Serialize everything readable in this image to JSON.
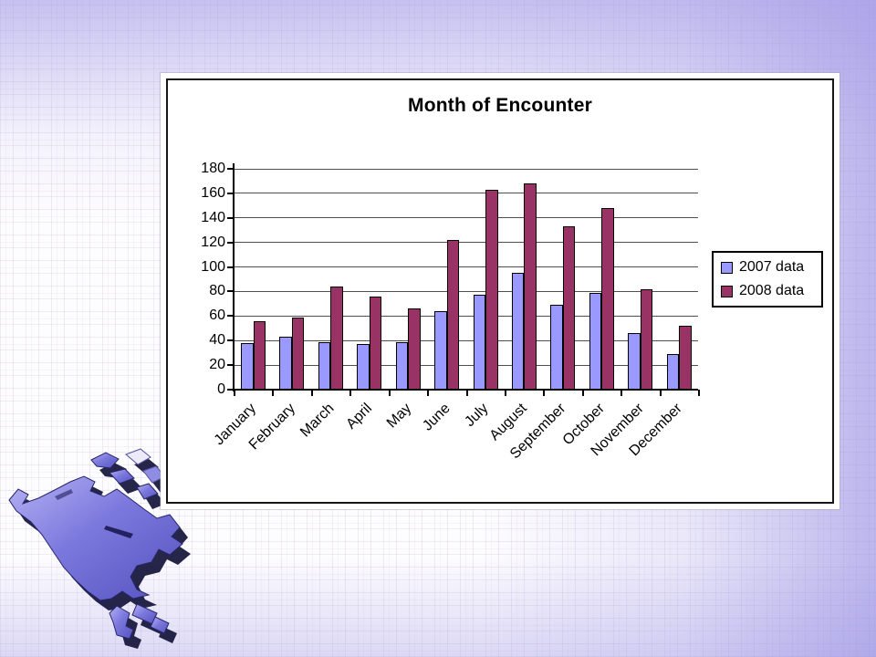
{
  "chart_data": {
    "type": "bar",
    "title": "Month of Encounter",
    "categories": [
      "January",
      "February",
      "March",
      "April",
      "May",
      "June",
      "July",
      "August",
      "September",
      "October",
      "November",
      "December"
    ],
    "series": [
      {
        "name": "2007 data",
        "color": "#9999ff",
        "values": [
          38,
          43,
          39,
          37,
          39,
          64,
          77,
          95,
          69,
          79,
          46,
          29
        ]
      },
      {
        "name": "2008 data",
        "color": "#993366",
        "values": [
          56,
          59,
          84,
          76,
          66,
          122,
          163,
          168,
          133,
          148,
          82,
          52
        ]
      }
    ],
    "xlabel": "",
    "ylabel": "",
    "ylim": [
      0,
      180
    ],
    "ytick_step": 20,
    "yticks": [
      0,
      20,
      40,
      60,
      80,
      100,
      120,
      140,
      160,
      180
    ],
    "grid": true,
    "legend_position": "right",
    "grid_color": "#4f4f4f",
    "axis_color": "#000000",
    "plot_background": "#ffffff"
  },
  "slide": {
    "panel_background": "#ffffff",
    "panel_border_color": "#161616",
    "background_tint": "#a299e6"
  },
  "decorations": {
    "map_icon": "north-america-map",
    "map_fill": "#7b78dd",
    "map_shadow": "#16163c"
  }
}
